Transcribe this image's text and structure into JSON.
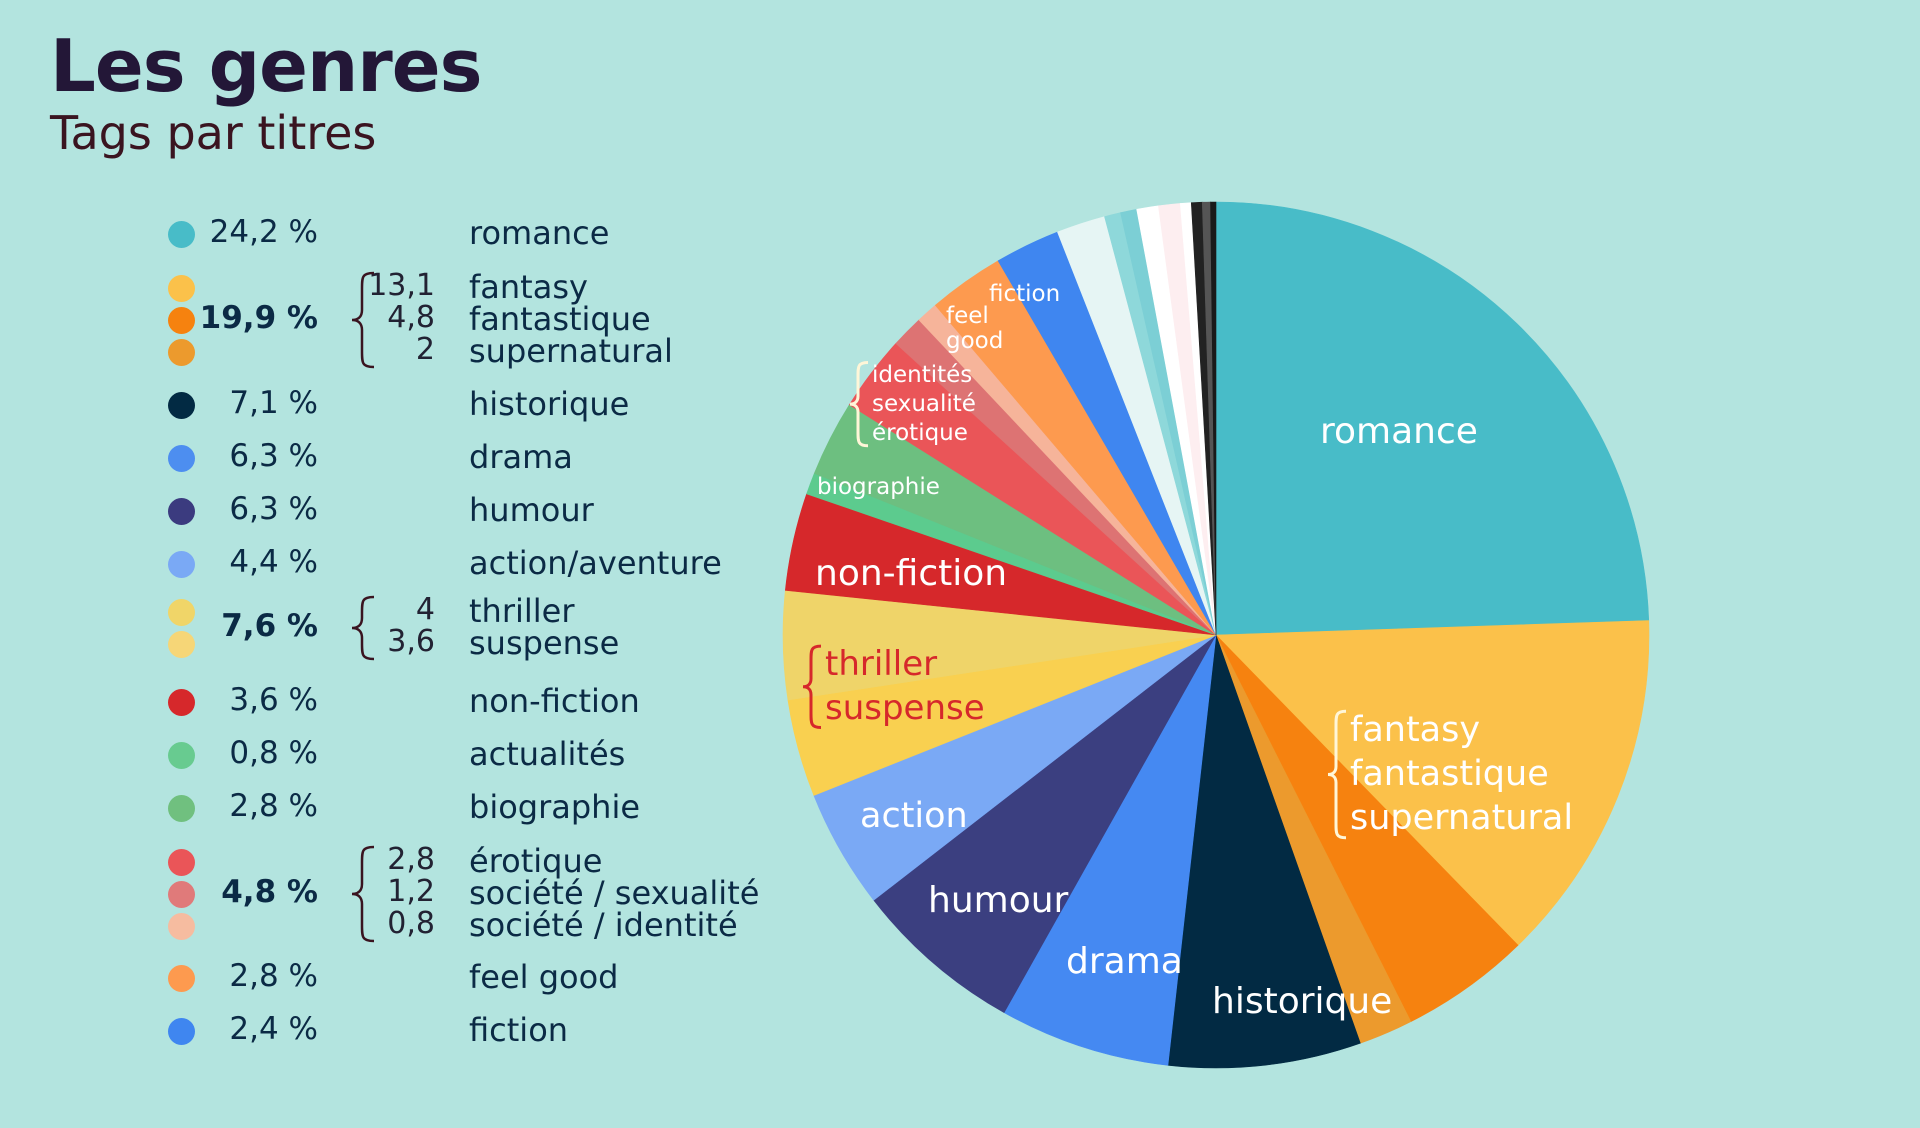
{
  "title": "Les genres",
  "subtitle": "Tags par titres",
  "legend": [
    {
      "pct": "24,2 %",
      "bold": false,
      "colors": [
        "#48bcc8"
      ],
      "labels": [
        "romance"
      ],
      "subs": []
    },
    {
      "pct": "19,9 %",
      "bold": true,
      "colors": [
        "#fbc14a",
        "#f6820f",
        "#ec9a2d"
      ],
      "labels": [
        "fantasy",
        "fantastique",
        "supernatural"
      ],
      "subs": [
        "13,1",
        "4,8",
        "2"
      ]
    },
    {
      "pct": "7,1 %",
      "bold": false,
      "colors": [
        "#022a43"
      ],
      "labels": [
        "historique"
      ],
      "subs": []
    },
    {
      "pct": "6,3 %",
      "bold": false,
      "colors": [
        "#4d8ef0"
      ],
      "labels": [
        "drama"
      ],
      "subs": []
    },
    {
      "pct": "6,3 %",
      "bold": false,
      "colors": [
        "#3b3b7f"
      ],
      "labels": [
        "humour"
      ],
      "subs": []
    },
    {
      "pct": "4,4 %",
      "bold": false,
      "colors": [
        "#7aa9f5"
      ],
      "labels": [
        "action/aventure"
      ],
      "subs": []
    },
    {
      "pct": "7,6 %",
      "bold": true,
      "colors": [
        "#f0d568",
        "#f6d677"
      ],
      "labels": [
        "thriller",
        "suspense"
      ],
      "subs": [
        "4",
        "3,6"
      ]
    },
    {
      "pct": "3,6 %",
      "bold": false,
      "colors": [
        "#d6282b"
      ],
      "labels": [
        "non-fiction"
      ],
      "subs": []
    },
    {
      "pct": "0,8 %",
      "bold": false,
      "colors": [
        "#68cb90"
      ],
      "labels": [
        "actualités"
      ],
      "subs": []
    },
    {
      "pct": "2,8 %",
      "bold": false,
      "colors": [
        "#70c07f"
      ],
      "labels": [
        "biographie"
      ],
      "subs": []
    },
    {
      "pct": "4,8 %",
      "bold": true,
      "colors": [
        "#ea5558",
        "#e07a7a",
        "#f6bca0"
      ],
      "labels": [
        "érotique",
        "société / sexualité",
        "société / identité"
      ],
      "subs": [
        "2,8",
        "1,2",
        "0,8"
      ]
    },
    {
      "pct": "2,8 %",
      "bold": false,
      "colors": [
        "#fd9a4f"
      ],
      "labels": [
        "feel good"
      ],
      "subs": []
    },
    {
      "pct": "2,4 %",
      "bold": false,
      "colors": [
        "#3f86f0"
      ],
      "labels": [
        "fiction"
      ],
      "subs": []
    }
  ],
  "chart_data": {
    "type": "pie",
    "title": "Les genres",
    "subtitle": "Tags par titres",
    "unit": "%",
    "slices": [
      {
        "name": "romance",
        "value": 24.2,
        "color": "#48bcc8"
      },
      {
        "name": "fantasy",
        "value": 13.1,
        "color": "#fbc14a"
      },
      {
        "name": "fantastique",
        "value": 4.8,
        "color": "#f6820f"
      },
      {
        "name": "supernatural",
        "value": 2.0,
        "color": "#ec9a2d"
      },
      {
        "name": "historique",
        "value": 7.1,
        "color": "#022a43"
      },
      {
        "name": "drama",
        "value": 6.3,
        "color": "#4589f2"
      },
      {
        "name": "humour",
        "value": 6.3,
        "color": "#3b3f80"
      },
      {
        "name": "action/aventure",
        "value": 4.4,
        "color": "#7aa9f5"
      },
      {
        "name": "suspense",
        "value": 3.6,
        "color": "#f9d050"
      },
      {
        "name": "thriller",
        "value": 4.0,
        "color": "#efd469"
      },
      {
        "name": "non-fiction",
        "value": 3.6,
        "color": "#d6282b"
      },
      {
        "name": "actualités",
        "value": 0.8,
        "color": "#5ccb8e"
      },
      {
        "name": "biographie",
        "value": 2.8,
        "color": "#6dbf80"
      },
      {
        "name": "érotique",
        "value": 2.8,
        "color": "#ea5558"
      },
      {
        "name": "société / sexualité",
        "value": 1.2,
        "color": "#dd7373"
      },
      {
        "name": "société / identité",
        "value": 0.8,
        "color": "#f6b49a"
      },
      {
        "name": "feel good",
        "value": 2.8,
        "color": "#fd9a4f"
      },
      {
        "name": "fiction",
        "value": 2.4,
        "color": "#3f86f0"
      },
      {
        "name": "",
        "value": 1.8,
        "color": "#e6f5f4"
      },
      {
        "name": "",
        "value": 0.6,
        "color": "#8ed8da"
      },
      {
        "name": "",
        "value": 0.6,
        "color": "#7ccfd5"
      },
      {
        "name": "",
        "value": 0.8,
        "color": "#ffffff"
      },
      {
        "name": "",
        "value": 0.8,
        "color": "#fdeef0"
      },
      {
        "name": "",
        "value": 0.4,
        "color": "#ffffff"
      },
      {
        "name": "",
        "value": 0.4,
        "color": "#222222"
      },
      {
        "name": "",
        "value": 0.3,
        "color": "#555555"
      },
      {
        "name": "",
        "value": 0.2,
        "color": "#1a1a1a"
      }
    ],
    "pie_labels": [
      {
        "lines": [
          "romance"
        ],
        "color": "#ffffff"
      },
      {
        "lines": [
          "fantasy",
          "fantastique",
          "supernatural"
        ],
        "color": "#ffffff"
      },
      {
        "lines": [
          "historique"
        ],
        "color": "#ffffff"
      },
      {
        "lines": [
          "drama"
        ],
        "color": "#ffffff"
      },
      {
        "lines": [
          "humour"
        ],
        "color": "#ffffff"
      },
      {
        "lines": [
          "action"
        ],
        "color": "#ffffff"
      },
      {
        "lines": [
          "thriller",
          "suspense"
        ],
        "color": "#d6282b"
      },
      {
        "lines": [
          "non-fiction"
        ],
        "color": "#ffffff"
      },
      {
        "lines": [
          "biographie"
        ],
        "color": "#ffffff"
      },
      {
        "lines": [
          "identités",
          "sexualité",
          "érotique"
        ],
        "color": "#ffffff"
      },
      {
        "lines": [
          "feel",
          "good"
        ],
        "color": "#ffffff"
      },
      {
        "lines": [
          "fiction"
        ],
        "color": "#ffffff"
      }
    ]
  }
}
